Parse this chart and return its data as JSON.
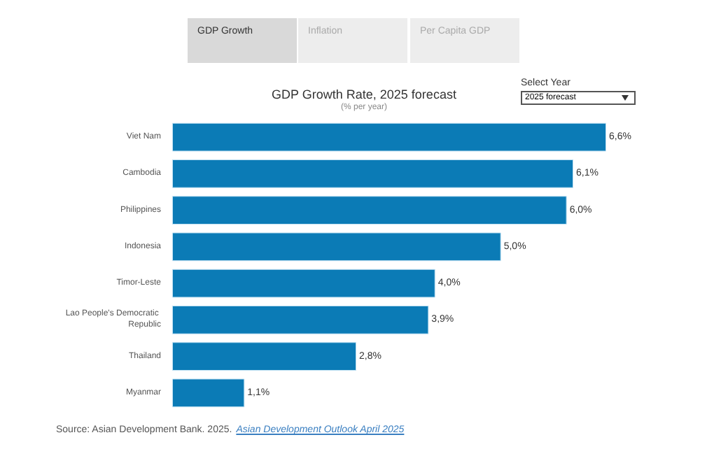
{
  "chart_data": {
    "type": "bar",
    "orientation": "horizontal",
    "title": "GDP Growth Rate, 2025 forecast",
    "subtitle": "(% per year)",
    "categories": [
      "Viet Nam",
      "Cambodia",
      "Philippines",
      "Indonesia",
      "Timor-Leste",
      "Lao People's Democratic Republic",
      "Thailand",
      "Myanmar"
    ],
    "values": [
      6.6,
      6.1,
      6.0,
      5.0,
      4.0,
      3.9,
      2.8,
      1.1
    ],
    "value_labels": [
      "6,6%",
      "6,1%",
      "6,0%",
      "5,0%",
      "4,0%",
      "3,9%",
      "2,8%",
      "1,1%"
    ],
    "color": "#0b7bb6",
    "annotations": [
      "GDP Growth",
      "Inflation",
      "Per Capita GDP",
      "Select Year",
      "2025 forecast",
      "Source: Asian Development Bank. 2025.",
      "Asian Development Outlook April 2025"
    ]
  }
}
